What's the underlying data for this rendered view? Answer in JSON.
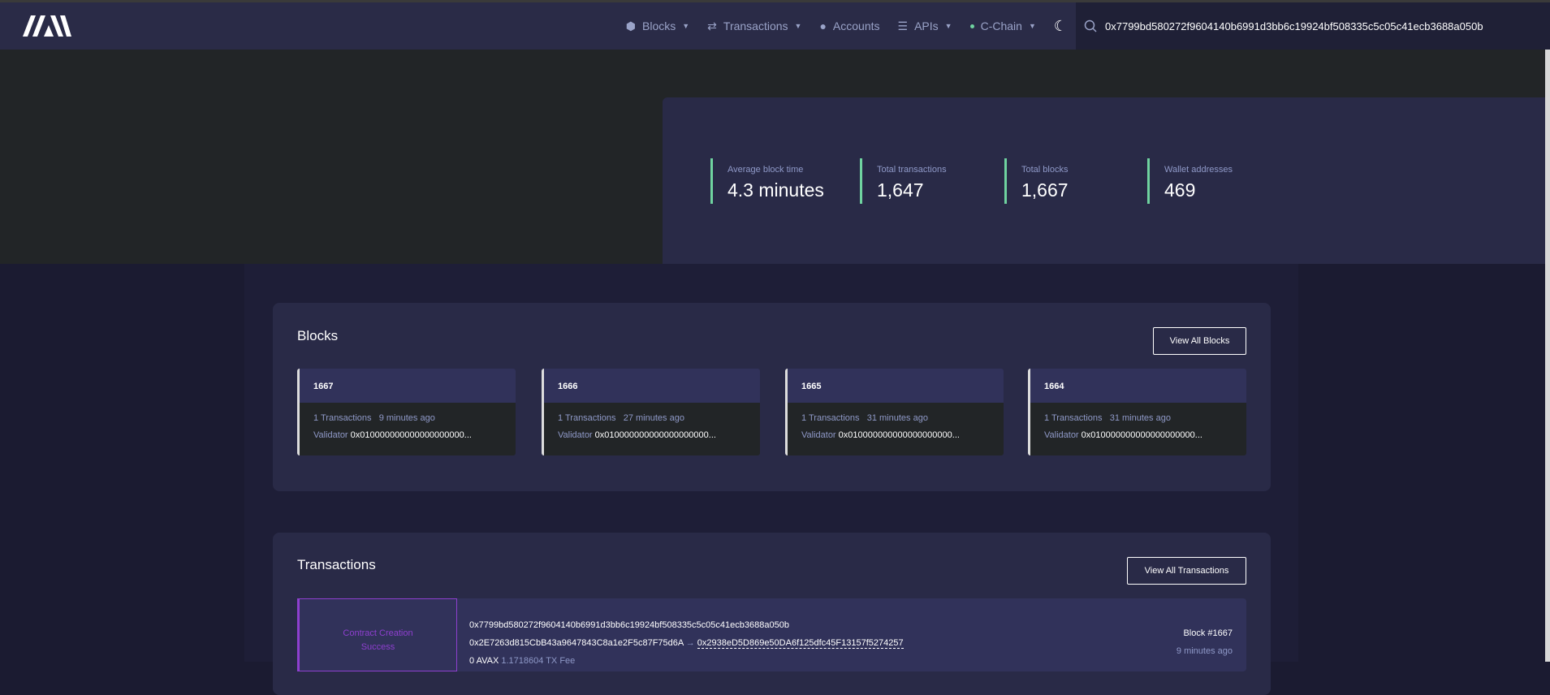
{
  "nav": {
    "items": [
      {
        "label": "Blocks",
        "icon": "cube-icon",
        "dropdown": true
      },
      {
        "label": "Transactions",
        "icon": "transfer-icon",
        "dropdown": true
      },
      {
        "label": "Accounts",
        "icon": "user-icon",
        "dropdown": false
      },
      {
        "label": "APIs",
        "icon": "sliders-icon",
        "dropdown": true
      },
      {
        "label": "C-Chain",
        "icon": "status-dot-icon",
        "dropdown": true
      }
    ],
    "search_value": "0x7799bd580272f9604140b6991d3bb6c19924bf508335c5c05c41ecb3688a050b"
  },
  "stats": [
    {
      "label": "Average block time",
      "value": "4.3 minutes"
    },
    {
      "label": "Total transactions",
      "value": "1,647"
    },
    {
      "label": "Total blocks",
      "value": "1,667"
    },
    {
      "label": "Wallet addresses",
      "value": "469"
    }
  ],
  "blocks": {
    "title": "Blocks",
    "view_all": "View All Blocks",
    "items": [
      {
        "number": "1667",
        "txs": "1 Transactions",
        "age": "9 minutes ago",
        "validator_label": "Validator",
        "validator": "0x010000000000000000000..."
      },
      {
        "number": "1666",
        "txs": "1 Transactions",
        "age": "27 minutes ago",
        "validator_label": "Validator",
        "validator": "0x010000000000000000000..."
      },
      {
        "number": "1665",
        "txs": "1 Transactions",
        "age": "31 minutes ago",
        "validator_label": "Validator",
        "validator": "0x010000000000000000000..."
      },
      {
        "number": "1664",
        "txs": "1 Transactions",
        "age": "31 minutes ago",
        "validator_label": "Validator",
        "validator": "0x010000000000000000000..."
      }
    ]
  },
  "transactions": {
    "title": "Transactions",
    "view_all": "View All Transactions",
    "items": [
      {
        "type": "Contract Creation",
        "status": "Success",
        "hash": "0x7799bd580272f9604140b6991d3bb6c19924bf508335c5c05c41ecb3688a050b",
        "from": "0x2E7263d815CbB43a9647843C8a1e2F5c87F75d6A",
        "arrow": "→",
        "to": "0x2938eD5D869e50DA6f125dfc45F13157f5274257",
        "value": "0 AVAX",
        "fee": "1.1718604 TX Fee",
        "block": "Block #1667",
        "age": "9 minutes ago"
      }
    ]
  },
  "colors": {
    "accent": "#6fd3a0",
    "contract": "#8e3fcf",
    "nav_bg": "#2a2b47"
  }
}
